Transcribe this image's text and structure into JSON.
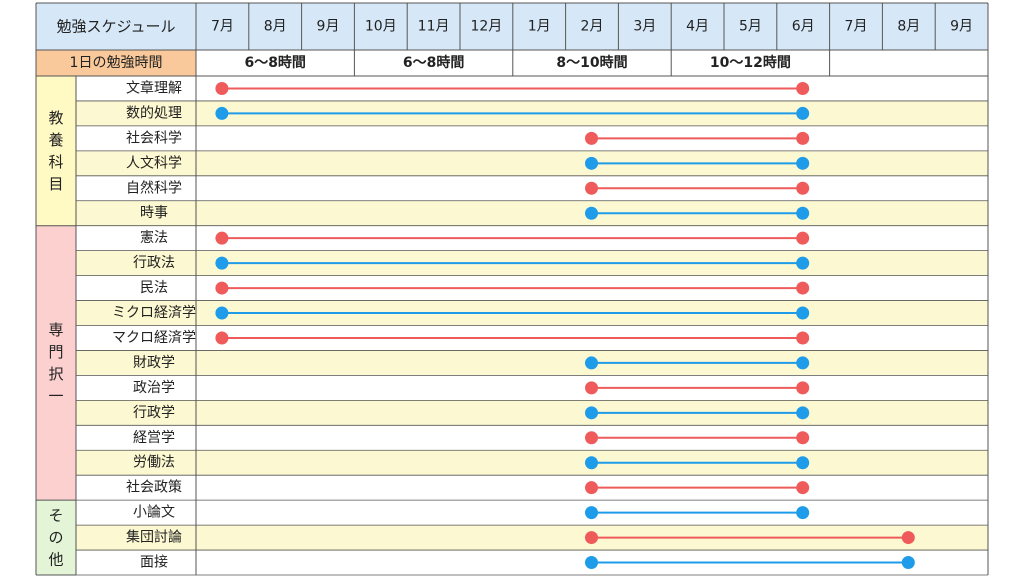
{
  "title": "勉強スケジュール",
  "months": [
    "7月",
    "8月",
    "9月",
    "10月",
    "11月",
    "12月",
    "1月",
    "2月",
    "3月",
    "4月",
    "5月",
    "6月",
    "7月",
    "8月",
    "9月"
  ],
  "daily_label": "1日の勉強時間",
  "daily_hours": [
    {
      "label": "6〜8時間",
      "start": 0,
      "end": 3
    },
    {
      "label": "6〜8時間",
      "start": 3,
      "end": 6
    },
    {
      "label": "8〜10時間",
      "start": 6,
      "end": 9
    },
    {
      "label": "10〜12時間",
      "start": 9,
      "end": 12
    }
  ],
  "groups": [
    {
      "label": "教養科目",
      "color": "#fff9c4",
      "rows": [
        {
          "name": "文章理解",
          "start": 0,
          "end": 11
        },
        {
          "name": "数的処理",
          "start": 0,
          "end": 11
        },
        {
          "name": "社会科学",
          "start": 7,
          "end": 11
        },
        {
          "name": "人文科学",
          "start": 7,
          "end": 11
        },
        {
          "name": "自然科学",
          "start": 7,
          "end": 11
        },
        {
          "name": "時事",
          "start": 7,
          "end": 11
        }
      ]
    },
    {
      "label": "専門択一",
      "color": "#fbd0cf",
      "rows": [
        {
          "name": "憲法",
          "start": 0,
          "end": 11
        },
        {
          "name": "行政法",
          "start": 0,
          "end": 11
        },
        {
          "name": "民法",
          "start": 0,
          "end": 11
        },
        {
          "name": "ミクロ経済学",
          "start": 0,
          "end": 11
        },
        {
          "name": "マクロ経済学",
          "start": 0,
          "end": 11
        },
        {
          "name": "財政学",
          "start": 7,
          "end": 11
        },
        {
          "name": "政治学",
          "start": 7,
          "end": 11
        },
        {
          "name": "行政学",
          "start": 7,
          "end": 11
        },
        {
          "name": "経営学",
          "start": 7,
          "end": 11
        },
        {
          "name": "労働法",
          "start": 7,
          "end": 11
        },
        {
          "name": "社会政策",
          "start": 7,
          "end": 11
        }
      ]
    },
    {
      "label": "その他",
      "color": "#e3f4d7",
      "rows": [
        {
          "name": "小論文",
          "start": 7,
          "end": 11
        },
        {
          "name": "集団討論",
          "start": 7,
          "end": 13
        },
        {
          "name": "面接",
          "start": 7,
          "end": 13
        }
      ]
    }
  ],
  "colors": {
    "red": "#ef5b5b",
    "blue": "#1e9be9",
    "header_bg": "#d6e8f7",
    "daily_label_bg": "#f9c99b",
    "row_alt_bg": "#fcf8d1",
    "grid": "#555555"
  }
}
